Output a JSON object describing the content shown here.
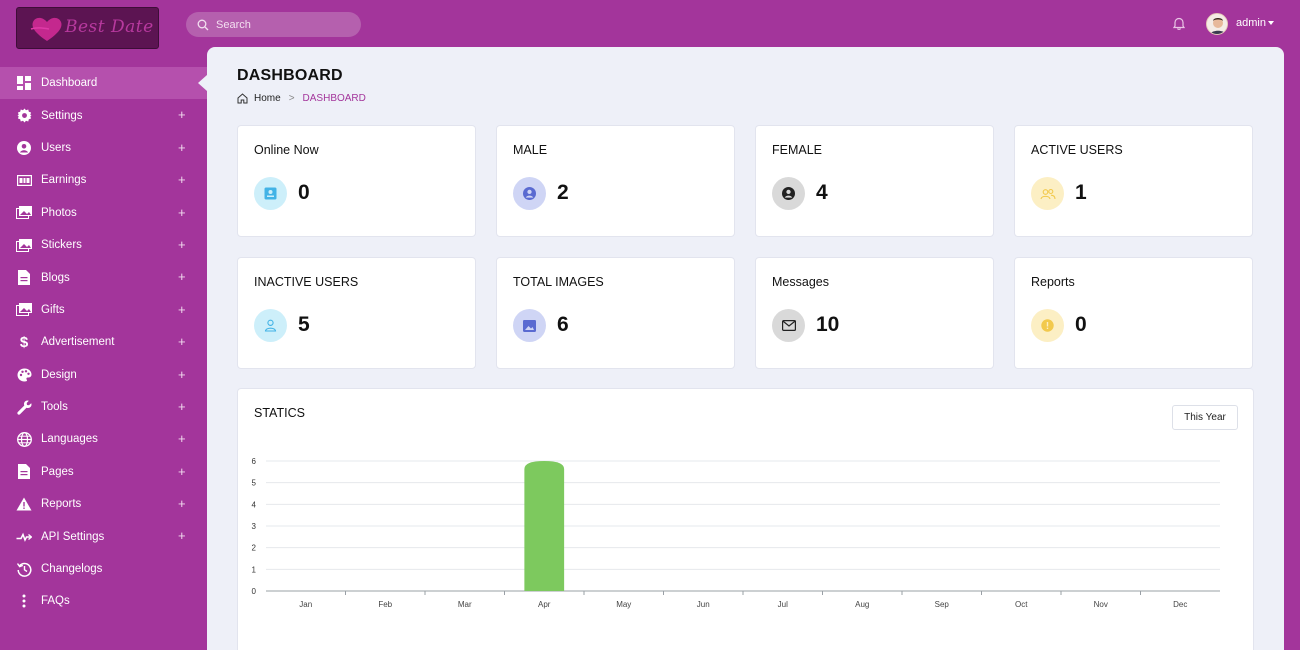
{
  "brand": {
    "name": "Best Date"
  },
  "search": {
    "placeholder": "Search"
  },
  "user": {
    "name": "admin"
  },
  "sidebar": {
    "items": [
      {
        "label": "Dashboard",
        "icon": "dashboard-icon",
        "expandable": false,
        "active": true
      },
      {
        "label": "Settings",
        "icon": "gear-icon",
        "expandable": true
      },
      {
        "label": "Users",
        "icon": "user-circle-icon",
        "expandable": true
      },
      {
        "label": "Earnings",
        "icon": "money-icon",
        "expandable": true
      },
      {
        "label": "Photos",
        "icon": "photos-icon",
        "expandable": true
      },
      {
        "label": "Stickers",
        "icon": "stickers-icon",
        "expandable": true
      },
      {
        "label": "Blogs",
        "icon": "document-icon",
        "expandable": true
      },
      {
        "label": "Gifts",
        "icon": "gift-icon",
        "expandable": true
      },
      {
        "label": "Advertisement",
        "icon": "dollar-icon",
        "expandable": true
      },
      {
        "label": "Design",
        "icon": "palette-icon",
        "expandable": true
      },
      {
        "label": "Tools",
        "icon": "wrench-icon",
        "expandable": true
      },
      {
        "label": "Languages",
        "icon": "globe-icon",
        "expandable": true
      },
      {
        "label": "Pages",
        "icon": "page-icon",
        "expandable": true
      },
      {
        "label": "Reports",
        "icon": "warning-icon",
        "expandable": true
      },
      {
        "label": "API Settings",
        "icon": "api-icon",
        "expandable": true
      },
      {
        "label": "Changelogs",
        "icon": "history-icon",
        "expandable": false
      },
      {
        "label": "FAQs",
        "icon": "more-vertical-icon",
        "expandable": false
      }
    ],
    "expand_symbol": "+"
  },
  "page": {
    "title": "DASHBOARD",
    "breadcrumb": {
      "home": "Home",
      "separator": ">",
      "current": "DASHBOARD"
    }
  },
  "stats": {
    "online_now": {
      "label": "Online Now",
      "value": "0",
      "icon": "contact-card-icon",
      "color": "#42b3e6"
    },
    "male": {
      "label": "MALE",
      "value": "2",
      "icon": "user-circle-icon",
      "color": "#5a6ad1"
    },
    "female": {
      "label": "FEMALE",
      "value": "4",
      "icon": "user-circle-icon",
      "color": "#222222"
    },
    "active_users": {
      "label": "ACTIVE USERS",
      "value": "1",
      "icon": "users-icon",
      "color": "#f2c94c"
    },
    "inactive_users": {
      "label": "INACTIVE USERS",
      "value": "5",
      "icon": "user-icon",
      "color": "#42b3e6"
    },
    "total_images": {
      "label": "TOTAL IMAGES",
      "value": "6",
      "icon": "image-icon",
      "color": "#5a6ad1"
    },
    "messages": {
      "label": "Messages",
      "value": "10",
      "icon": "mail-icon",
      "color": "#222222"
    },
    "reports": {
      "label": "Reports",
      "value": "0",
      "icon": "alert-circle-icon",
      "color": "#f2c94c"
    }
  },
  "statics": {
    "title": "STATICS",
    "period_button": "This Year"
  },
  "colors": {
    "brand": "#a3359b",
    "bar": "#7dc95e"
  },
  "chart_data": {
    "type": "bar",
    "categories": [
      "Jan",
      "Feb",
      "Mar",
      "Apr",
      "May",
      "Jun",
      "Jul",
      "Aug",
      "Sep",
      "Oct",
      "Nov",
      "Dec"
    ],
    "values": [
      0,
      0,
      0,
      6,
      0,
      0,
      0,
      0,
      0,
      0,
      0,
      0
    ],
    "ylim": [
      0,
      6
    ],
    "yticks": [
      0,
      1,
      2,
      3,
      4,
      5,
      6
    ],
    "grid": true
  }
}
